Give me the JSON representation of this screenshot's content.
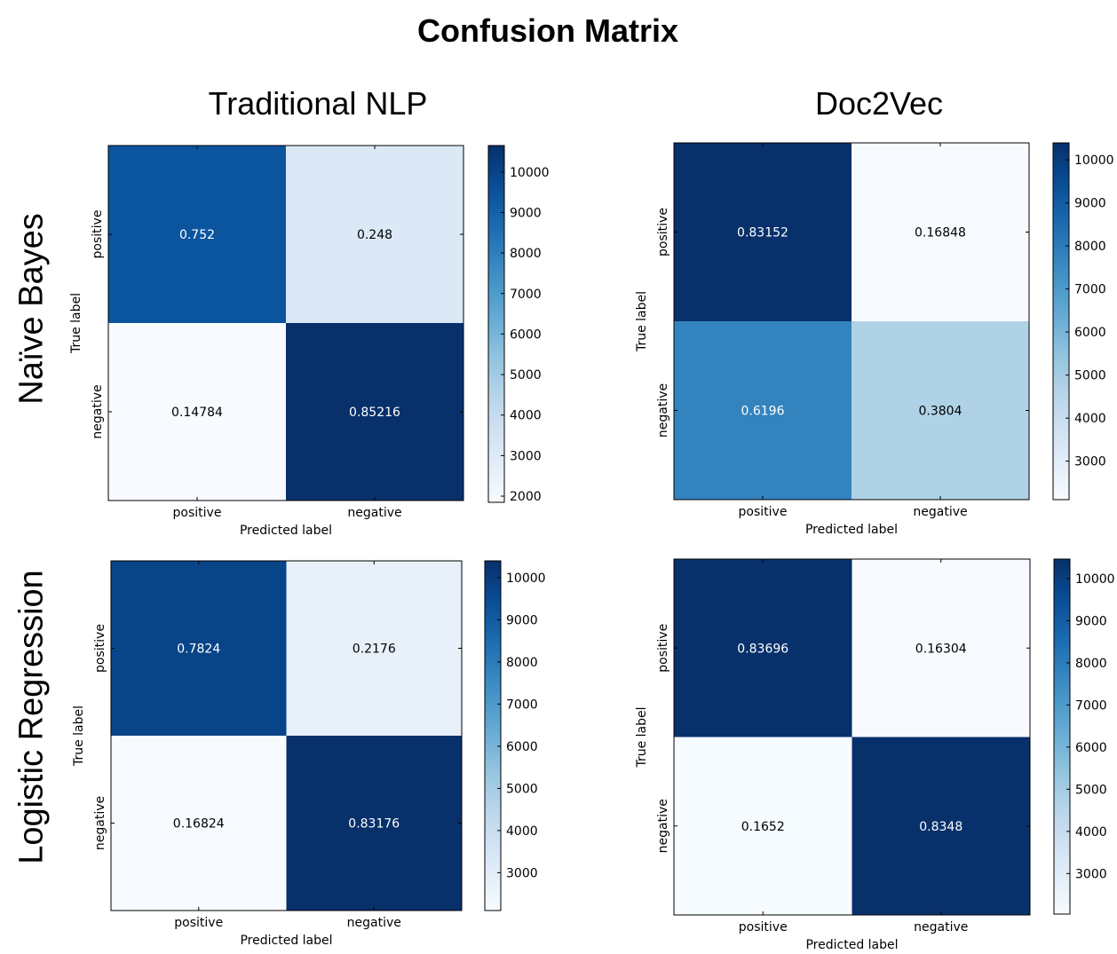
{
  "title": "Confusion Matrix",
  "column_titles": [
    "Traditional NLP",
    "Doc2Vec"
  ],
  "row_titles": [
    "Naïve Bayes",
    "Logistic Regression"
  ],
  "chart_data": [
    {
      "type": "heatmap",
      "model": "Naïve Bayes",
      "feature_method": "Traditional NLP",
      "x_categories": [
        "positive",
        "negative"
      ],
      "y_categories": [
        "positive",
        "negative"
      ],
      "xlabel": "Predicted label",
      "ylabel": "True label",
      "values": [
        [
          "0.752",
          "0.248"
        ],
        [
          "0.14784",
          "0.85216"
        ]
      ],
      "counts": [
        [
          9400,
          3100
        ],
        [
          1848,
          10652
        ]
      ],
      "colorbar": {
        "min": 1848,
        "max": 10652,
        "ticks": [
          2000,
          3000,
          4000,
          5000,
          6000,
          7000,
          8000,
          9000,
          10000
        ]
      }
    },
    {
      "type": "heatmap",
      "model": "Naïve Bayes",
      "feature_method": "Doc2Vec",
      "x_categories": [
        "positive",
        "negative"
      ],
      "y_categories": [
        "positive",
        "negative"
      ],
      "xlabel": "Predicted label",
      "ylabel": "True label",
      "values": [
        [
          "0.83152",
          "0.16848"
        ],
        [
          "0.6196",
          "0.3804"
        ]
      ],
      "counts": [
        [
          10394,
          2106
        ],
        [
          7745,
          4755
        ]
      ],
      "colorbar": {
        "min": 2106,
        "max": 10394,
        "ticks": [
          3000,
          4000,
          5000,
          6000,
          7000,
          8000,
          9000,
          10000
        ]
      }
    },
    {
      "type": "heatmap",
      "model": "Logistic Regression",
      "feature_method": "Traditional NLP",
      "x_categories": [
        "positive",
        "negative"
      ],
      "y_categories": [
        "positive",
        "negative"
      ],
      "xlabel": "Predicted label",
      "ylabel": "True label",
      "values": [
        [
          "0.7824",
          "0.2176"
        ],
        [
          "0.16824",
          "0.83176"
        ]
      ],
      "counts": [
        [
          9780,
          2720
        ],
        [
          2103,
          10397
        ]
      ],
      "colorbar": {
        "min": 2103,
        "max": 10397,
        "ticks": [
          3000,
          4000,
          5000,
          6000,
          7000,
          8000,
          9000,
          10000
        ]
      }
    },
    {
      "type": "heatmap",
      "model": "Logistic Regression",
      "feature_method": "Doc2Vec",
      "x_categories": [
        "positive",
        "negative"
      ],
      "y_categories": [
        "positive",
        "negative"
      ],
      "xlabel": "Predicted label",
      "ylabel": "True label",
      "values": [
        [
          "0.83696",
          "0.16304"
        ],
        [
          "0.1652",
          "0.8348"
        ]
      ],
      "counts": [
        [
          10462,
          2038
        ],
        [
          2065,
          10435
        ]
      ],
      "colorbar": {
        "min": 2038,
        "max": 10462,
        "ticks": [
          3000,
          4000,
          5000,
          6000,
          7000,
          8000,
          9000,
          10000
        ]
      }
    }
  ]
}
